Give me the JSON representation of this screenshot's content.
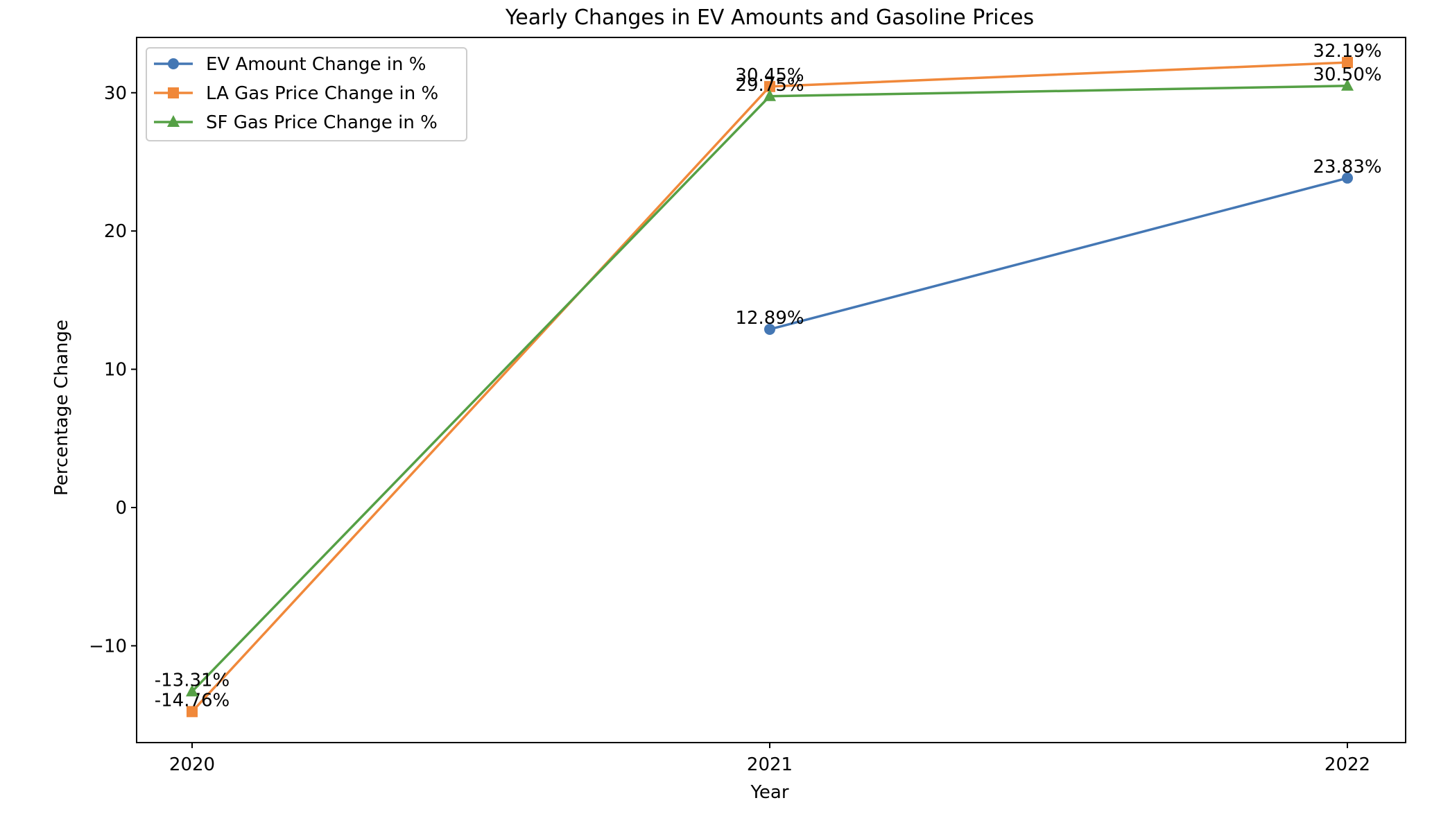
{
  "chart_data": {
    "type": "line",
    "title": "Yearly Changes in EV Amounts and Gasoline Prices",
    "xlabel": "Year",
    "ylabel": "Percentage Change",
    "categories": [
      "2020",
      "2021",
      "2022"
    ],
    "ylim": [
      -17,
      34
    ],
    "yticks": [
      -10,
      0,
      10,
      20,
      30
    ],
    "ytick_labels": [
      "−10",
      "0",
      "10",
      "20",
      "30"
    ],
    "grid": false,
    "legend_position": "top-left",
    "series": [
      {
        "name": "EV Amount Change in %",
        "color": "#4477b4",
        "marker": "circle",
        "values": [
          null,
          12.89,
          23.83
        ],
        "labels": [
          null,
          "12.89%",
          "23.83%"
        ]
      },
      {
        "name": "LA Gas Price Change in %",
        "color": "#f0883a",
        "marker": "square",
        "values": [
          -14.76,
          30.45,
          32.19
        ],
        "labels": [
          "-14.76%",
          "30.45%",
          "32.19%"
        ]
      },
      {
        "name": "SF Gas Price Change in %",
        "color": "#55a045",
        "marker": "triangle",
        "values": [
          -13.31,
          29.75,
          30.5
        ],
        "labels": [
          "-13.31%",
          "29.75%",
          "30.50%"
        ]
      }
    ]
  }
}
